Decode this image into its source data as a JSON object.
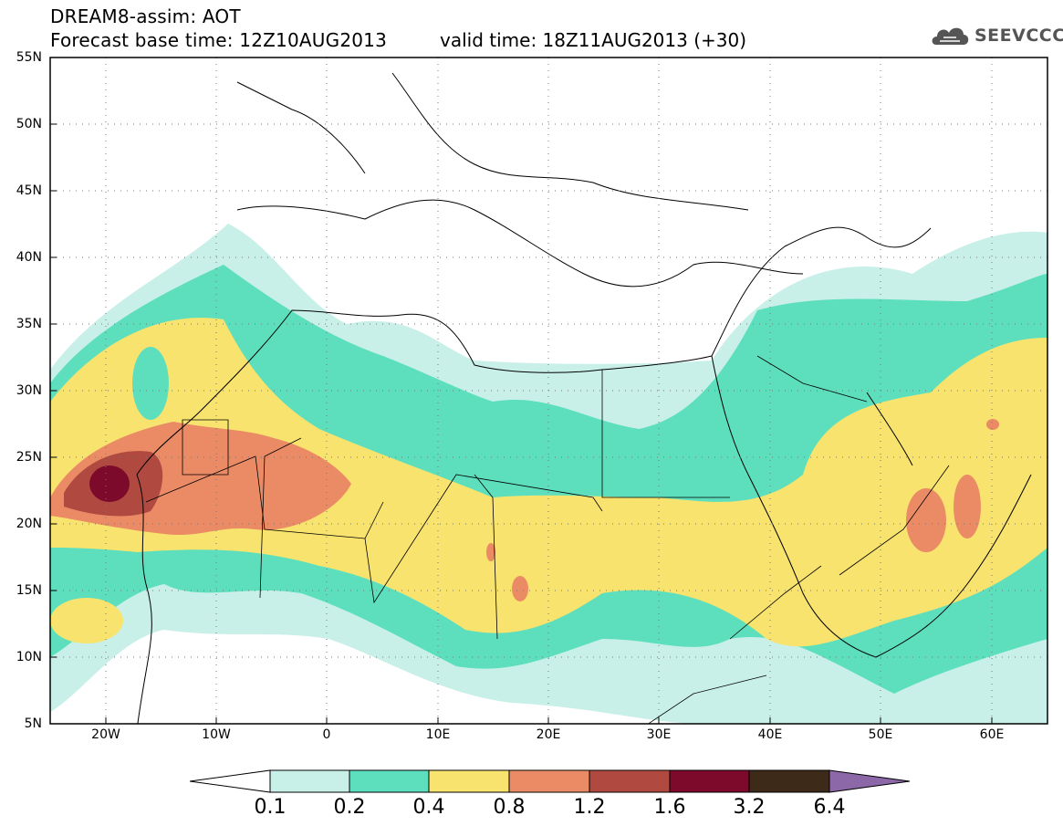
{
  "header": {
    "title_line1": "DREAM8-assim: AOT",
    "title_line2": "Forecast base time: 12Z10AUG2013",
    "valid_time": "valid time: 18Z11AUG2013 (+30)",
    "logo_text": "SEEVCCC",
    "logo_icon": "cloud-icon"
  },
  "map": {
    "lat_labels": [
      "55N",
      "50N",
      "45N",
      "40N",
      "35N",
      "30N",
      "25N",
      "20N",
      "15N",
      "10N",
      "5N"
    ],
    "lon_labels": [
      "20W",
      "10W",
      "0",
      "10E",
      "20E",
      "30E",
      "40E",
      "50E",
      "60E"
    ],
    "projection": "lat-lon",
    "extent": {
      "lon": [
        -25,
        65
      ],
      "lat": [
        5,
        55
      ]
    },
    "grid": "dotted"
  },
  "colorbar": {
    "labels": [
      "0.1",
      "0.2",
      "0.4",
      "0.8",
      "1.2",
      "1.6",
      "3.2",
      "6.4"
    ],
    "colors": [
      "#ffffff",
      "#c8f0e8",
      "#5ddfbe",
      "#f7e36e",
      "#ea8b66",
      "#b04a40",
      "#7e0a2b",
      "#3e2a18",
      "#8c68a8"
    ]
  }
}
